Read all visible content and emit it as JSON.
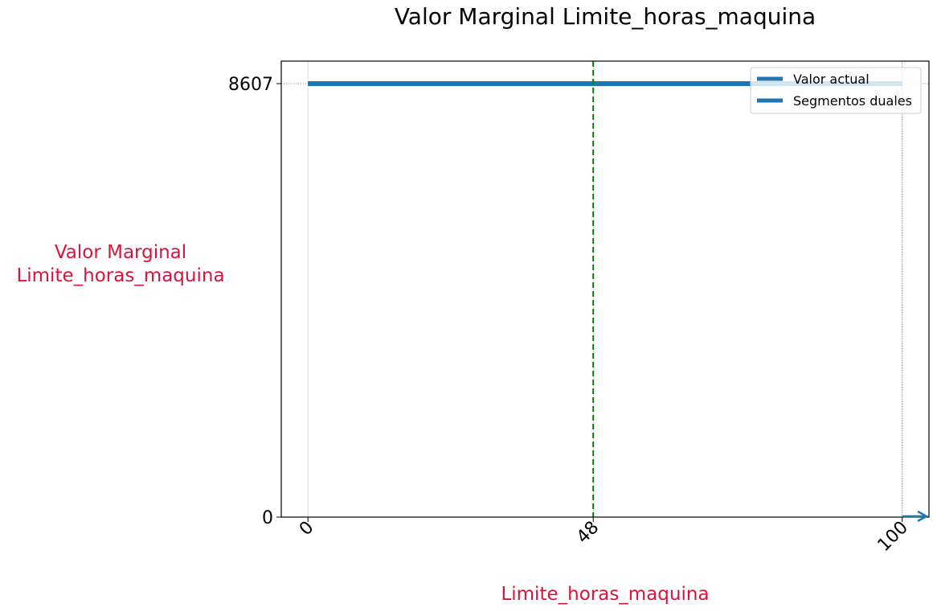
{
  "chart_data": {
    "type": "line",
    "title": "Valor Marginal Limite_horas_maquina",
    "xlabel": "Limite_horas_maquina",
    "ylabel_lines": [
      "Valor Marginal",
      "Limite_horas_maquina"
    ],
    "xlim": [
      -4.5,
      104.5
    ],
    "ylim": [
      0,
      8607
    ],
    "xticks": [
      0,
      48,
      100
    ],
    "yticks": [
      0,
      8607
    ],
    "current_value_x": 48,
    "series": [
      {
        "name": "Valor actual",
        "color": "#1f77b4",
        "points": [
          [
            0,
            8607
          ],
          [
            100,
            8607
          ]
        ]
      },
      {
        "name": "Segmentos duales",
        "color": "#1f77b4",
        "points": [
          [
            0,
            8607
          ],
          [
            100,
            8607
          ]
        ]
      }
    ],
    "vline_color": "#008000",
    "grid": true,
    "legend_position": "top-right"
  }
}
